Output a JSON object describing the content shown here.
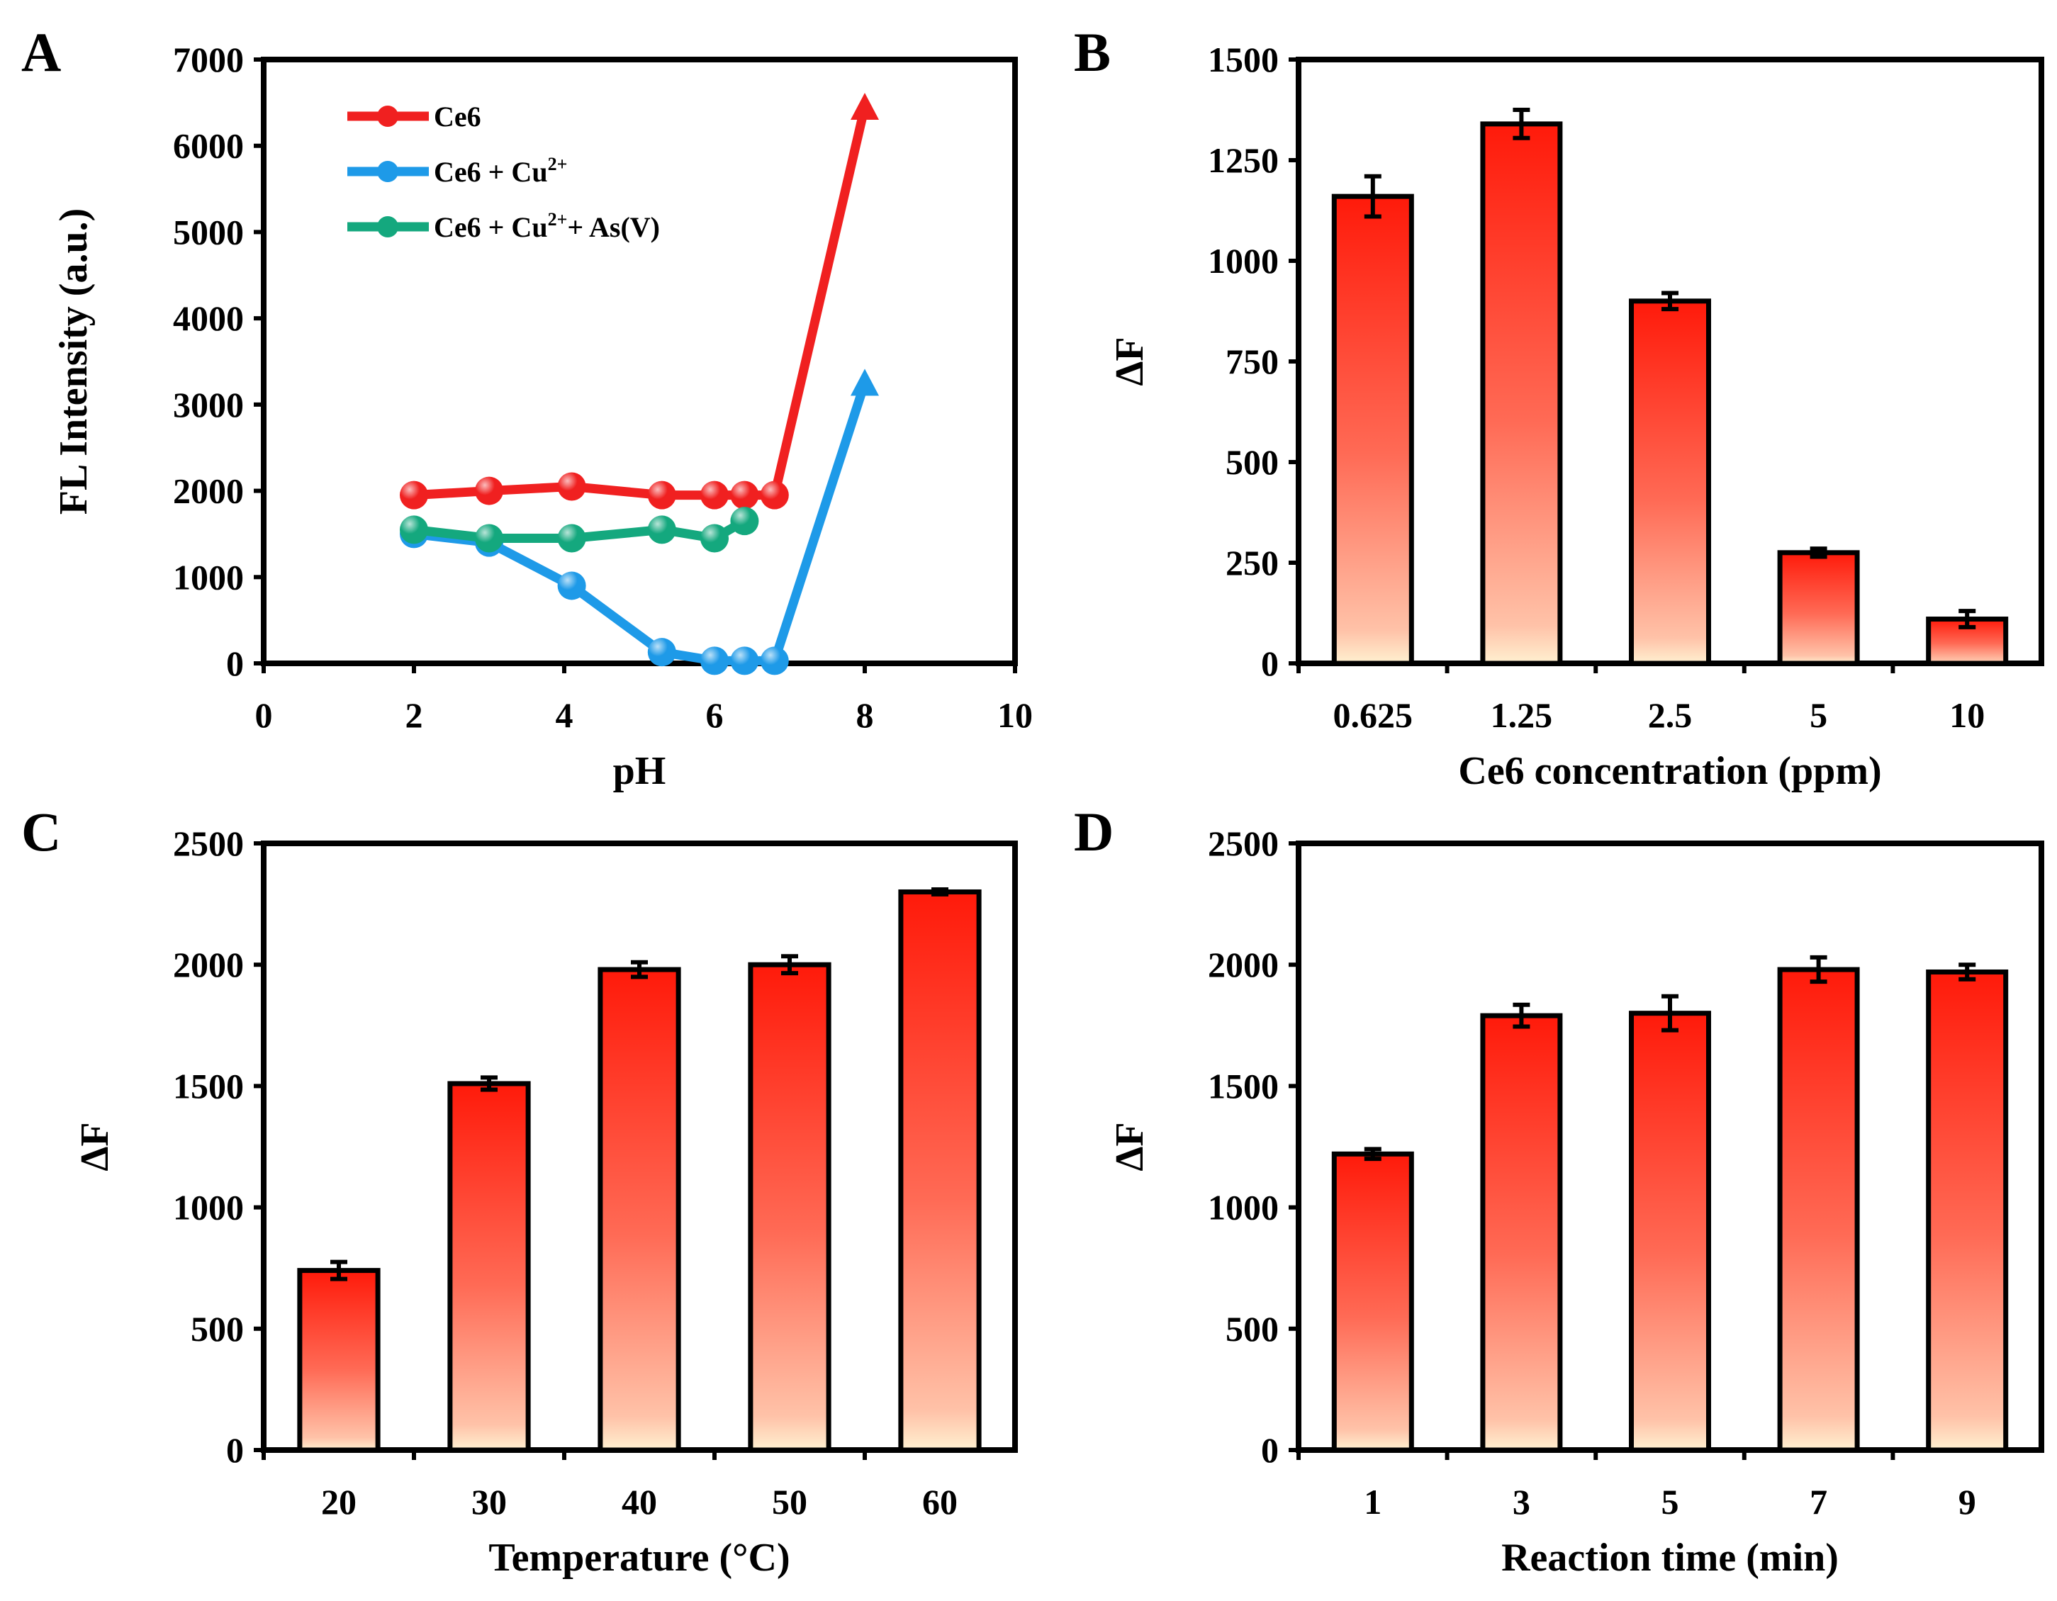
{
  "chart_data": [
    {
      "panel": "A",
      "type": "line",
      "xlabel": "pH",
      "ylabel": "FL Intensity (a.u.)",
      "xlim": [
        0,
        10
      ],
      "ylim": [
        0,
        7000
      ],
      "xticks": [
        "0",
        "2",
        "4",
        "6",
        "8",
        "10"
      ],
      "yticks": [
        "0",
        "1000",
        "2000",
        "3000",
        "4000",
        "5000",
        "6000",
        "7000"
      ],
      "legend_position": "top-left",
      "series": [
        {
          "name": "Ce6",
          "color": "#f02020",
          "x": [
            2,
            3,
            4.1,
            5.3,
            6,
            6.4,
            6.8,
            8
          ],
          "y": [
            1950,
            2000,
            2050,
            1950,
            1950,
            1950,
            1950,
            6450
          ]
        },
        {
          "name": "Ce6 + Cu2+",
          "color": "#1e9ae8",
          "x": [
            2,
            3,
            4.1,
            5.3,
            6,
            6.4,
            6.8,
            8
          ],
          "y": [
            1500,
            1400,
            900,
            130,
            30,
            30,
            30,
            3250
          ]
        },
        {
          "name": "Ce6 + Cu2++ As(V)",
          "color": "#14a87e",
          "x": [
            2,
            3,
            4.1,
            5.3,
            6,
            6.4
          ],
          "y": [
            1550,
            1450,
            1450,
            1550,
            1450,
            1650
          ]
        }
      ]
    },
    {
      "panel": "B",
      "type": "bar",
      "xlabel": "Ce6 concentration (ppm)",
      "ylabel": "ΔF",
      "ylim": [
        0,
        1500
      ],
      "yticks": [
        "0",
        "250",
        "500",
        "750",
        "1000",
        "1250",
        "1500"
      ],
      "categories": [
        "0.625",
        "1.25",
        "2.5",
        "5",
        "10"
      ],
      "values": [
        1160,
        1340,
        900,
        275,
        110
      ],
      "errors": [
        50,
        35,
        20,
        10,
        20
      ]
    },
    {
      "panel": "C",
      "type": "bar",
      "xlabel": "Temperature (°C)",
      "ylabel": "ΔF",
      "ylim": [
        0,
        2500
      ],
      "yticks": [
        "0",
        "500",
        "1000",
        "1500",
        "2000",
        "2500"
      ],
      "categories": [
        "20",
        "30",
        "40",
        "50",
        "60"
      ],
      "values": [
        740,
        1510,
        1980,
        2000,
        2300
      ],
      "errors": [
        35,
        25,
        30,
        35,
        10
      ]
    },
    {
      "panel": "D",
      "type": "bar",
      "xlabel": "Reaction time (min)",
      "ylabel": "ΔF",
      "ylim": [
        0,
        2500
      ],
      "yticks": [
        "0",
        "500",
        "1000",
        "1500",
        "2000",
        "2500"
      ],
      "categories": [
        "1",
        "3",
        "5",
        "7",
        "9"
      ],
      "values": [
        1220,
        1790,
        1800,
        1980,
        1970
      ],
      "errors": [
        20,
        45,
        70,
        50,
        30
      ]
    }
  ]
}
